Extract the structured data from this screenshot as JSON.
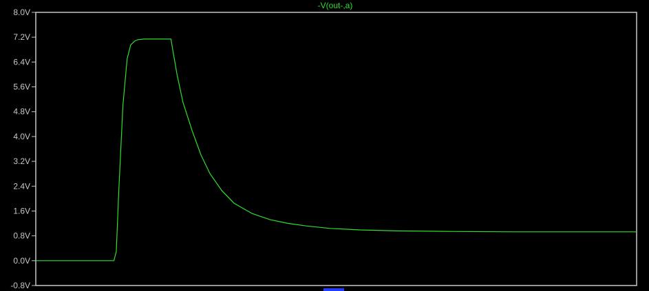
{
  "colors": {
    "background": "#000000",
    "frame": "#c8c8c8",
    "axis_text": "#c8c8c8",
    "trace": "#2fe02f",
    "xlabel_hint": "#1f3cff"
  },
  "chart_data": {
    "type": "line",
    "title": "-V(out-,a)",
    "xlabel": "",
    "ylabel": "",
    "ylim": [
      -0.8,
      8.0
    ],
    "xlim": [
      0,
      1
    ],
    "yticks": [
      "8.0V",
      "7.2V",
      "6.4V",
      "5.6V",
      "4.8V",
      "4.0V",
      "3.2V",
      "2.4V",
      "1.6V",
      "0.8V",
      "0.0V",
      "-0.8V"
    ],
    "ytick_values": [
      8.0,
      7.2,
      6.4,
      5.6,
      4.8,
      4.0,
      3.2,
      2.4,
      1.6,
      0.8,
      0.0,
      -0.8
    ],
    "grid": false,
    "series": [
      {
        "x": [
          0.0,
          0.13,
          0.134,
          0.138,
          0.145,
          0.152,
          0.158,
          0.165,
          0.17,
          0.18,
          0.19,
          0.21,
          0.225,
          0.227,
          0.235,
          0.245,
          0.26,
          0.275,
          0.29,
          0.31,
          0.33,
          0.36,
          0.39,
          0.42,
          0.45,
          0.49,
          0.54,
          0.6,
          0.7,
          0.8,
          1.0
        ],
        "y": [
          0.0,
          0.0,
          0.3,
          2.2,
          5.0,
          6.5,
          6.95,
          7.08,
          7.12,
          7.14,
          7.14,
          7.14,
          7.14,
          6.9,
          6.0,
          5.1,
          4.2,
          3.4,
          2.8,
          2.25,
          1.85,
          1.52,
          1.32,
          1.2,
          1.12,
          1.04,
          0.99,
          0.96,
          0.94,
          0.93,
          0.93
        ]
      }
    ]
  }
}
